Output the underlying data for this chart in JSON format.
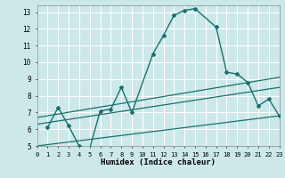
{
  "xlabel": "Humidex (Indice chaleur)",
  "background_color": "#cce8e8",
  "grid_color": "#ffffff",
  "line_color": "#1a7070",
  "xlim": [
    0,
    23
  ],
  "ylim": [
    5,
    13.4
  ],
  "xticks": [
    0,
    1,
    2,
    3,
    4,
    5,
    6,
    7,
    8,
    9,
    10,
    11,
    12,
    13,
    14,
    15,
    16,
    17,
    18,
    19,
    20,
    21,
    22,
    23
  ],
  "yticks": [
    5,
    6,
    7,
    8,
    9,
    10,
    11,
    12,
    13
  ],
  "curve1_x": [
    1,
    2,
    3,
    4,
    5,
    6,
    7,
    8,
    9,
    11,
    12,
    13,
    14,
    15,
    17,
    18,
    19,
    20,
    21,
    22,
    23
  ],
  "curve1_y": [
    6.1,
    7.3,
    6.2,
    5.0,
    4.85,
    7.1,
    7.2,
    8.5,
    7.0,
    10.5,
    11.6,
    12.8,
    13.1,
    13.2,
    12.1,
    9.4,
    9.3,
    8.8,
    7.4,
    7.8,
    6.8
  ],
  "line2_x": [
    0,
    23
  ],
  "line2_y": [
    6.3,
    8.5
  ],
  "line3_x": [
    0,
    23
  ],
  "line3_y": [
    6.7,
    9.1
  ],
  "line4_x": [
    0,
    23
  ],
  "line4_y": [
    5.0,
    6.8
  ]
}
